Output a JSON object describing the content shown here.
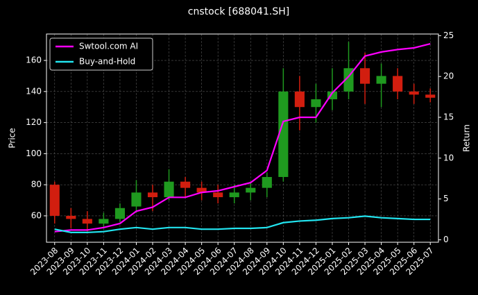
{
  "chart_data": {
    "type": "candlestick",
    "title": "cnstock [688041.SH]",
    "ylabel": "Price",
    "y2label": "Return",
    "x": [
      "2023-08",
      "2023-09",
      "2023-10",
      "2023-11",
      "2023-12",
      "2024-01",
      "2024-02",
      "2024-03",
      "2024-04",
      "2024-05",
      "2024-06",
      "2024-07",
      "2024-08",
      "2024-09",
      "2024-10",
      "2024-11",
      "2024-12",
      "2025-01",
      "2025-02",
      "2025-03",
      "2025-04",
      "2025-05",
      "2025-06",
      "2025-07"
    ],
    "open": [
      80,
      60,
      58,
      55,
      58,
      66,
      75,
      72,
      82,
      78,
      75,
      72,
      75,
      78,
      85,
      140,
      130,
      135,
      140,
      155,
      145,
      150,
      140,
      138
    ],
    "high": [
      82,
      65,
      63,
      62,
      68,
      83,
      80,
      90,
      85,
      82,
      80,
      80,
      82,
      88,
      155,
      150,
      145,
      155,
      172,
      165,
      158,
      155,
      145,
      142
    ],
    "low": [
      55,
      52,
      50,
      52,
      56,
      62,
      63,
      70,
      72,
      70,
      68,
      68,
      70,
      72,
      82,
      115,
      120,
      128,
      135,
      132,
      130,
      135,
      132,
      133
    ],
    "close": [
      60,
      58,
      55,
      58,
      65,
      75,
      72,
      82,
      78,
      75,
      72,
      75,
      78,
      85,
      140,
      130,
      135,
      140,
      155,
      145,
      150,
      140,
      138,
      136
    ],
    "up_color": "#1f9a1f",
    "down_color": "#d21e0f",
    "series": [
      {
        "name": "Swtool.com AI",
        "color": "#ff00ff",
        "axis": "y2",
        "values": [
          1.0,
          1.2,
          1.2,
          1.5,
          2.0,
          3.5,
          4.0,
          5.2,
          5.2,
          5.8,
          6.0,
          6.5,
          7.0,
          8.5,
          14.5,
          15.0,
          15.0,
          18.0,
          20.0,
          22.5,
          23.0,
          23.3,
          23.5,
          24.0
        ]
      },
      {
        "name": "Buy-and-Hold",
        "color": "#22e5f0",
        "axis": "y2",
        "values": [
          1.3,
          0.9,
          0.9,
          1.0,
          1.3,
          1.5,
          1.3,
          1.5,
          1.5,
          1.3,
          1.3,
          1.4,
          1.4,
          1.5,
          2.1,
          2.3,
          2.4,
          2.6,
          2.7,
          2.9,
          2.7,
          2.6,
          2.5,
          2.5
        ]
      }
    ],
    "ylim": [
      43,
      177
    ],
    "yticks": [
      60,
      80,
      100,
      120,
      140,
      160
    ],
    "y2lim": [
      -0.3,
      25.2
    ],
    "y2ticks": [
      0,
      5,
      10,
      15,
      20,
      25
    ],
    "grid": true,
    "legend": "upper left"
  }
}
